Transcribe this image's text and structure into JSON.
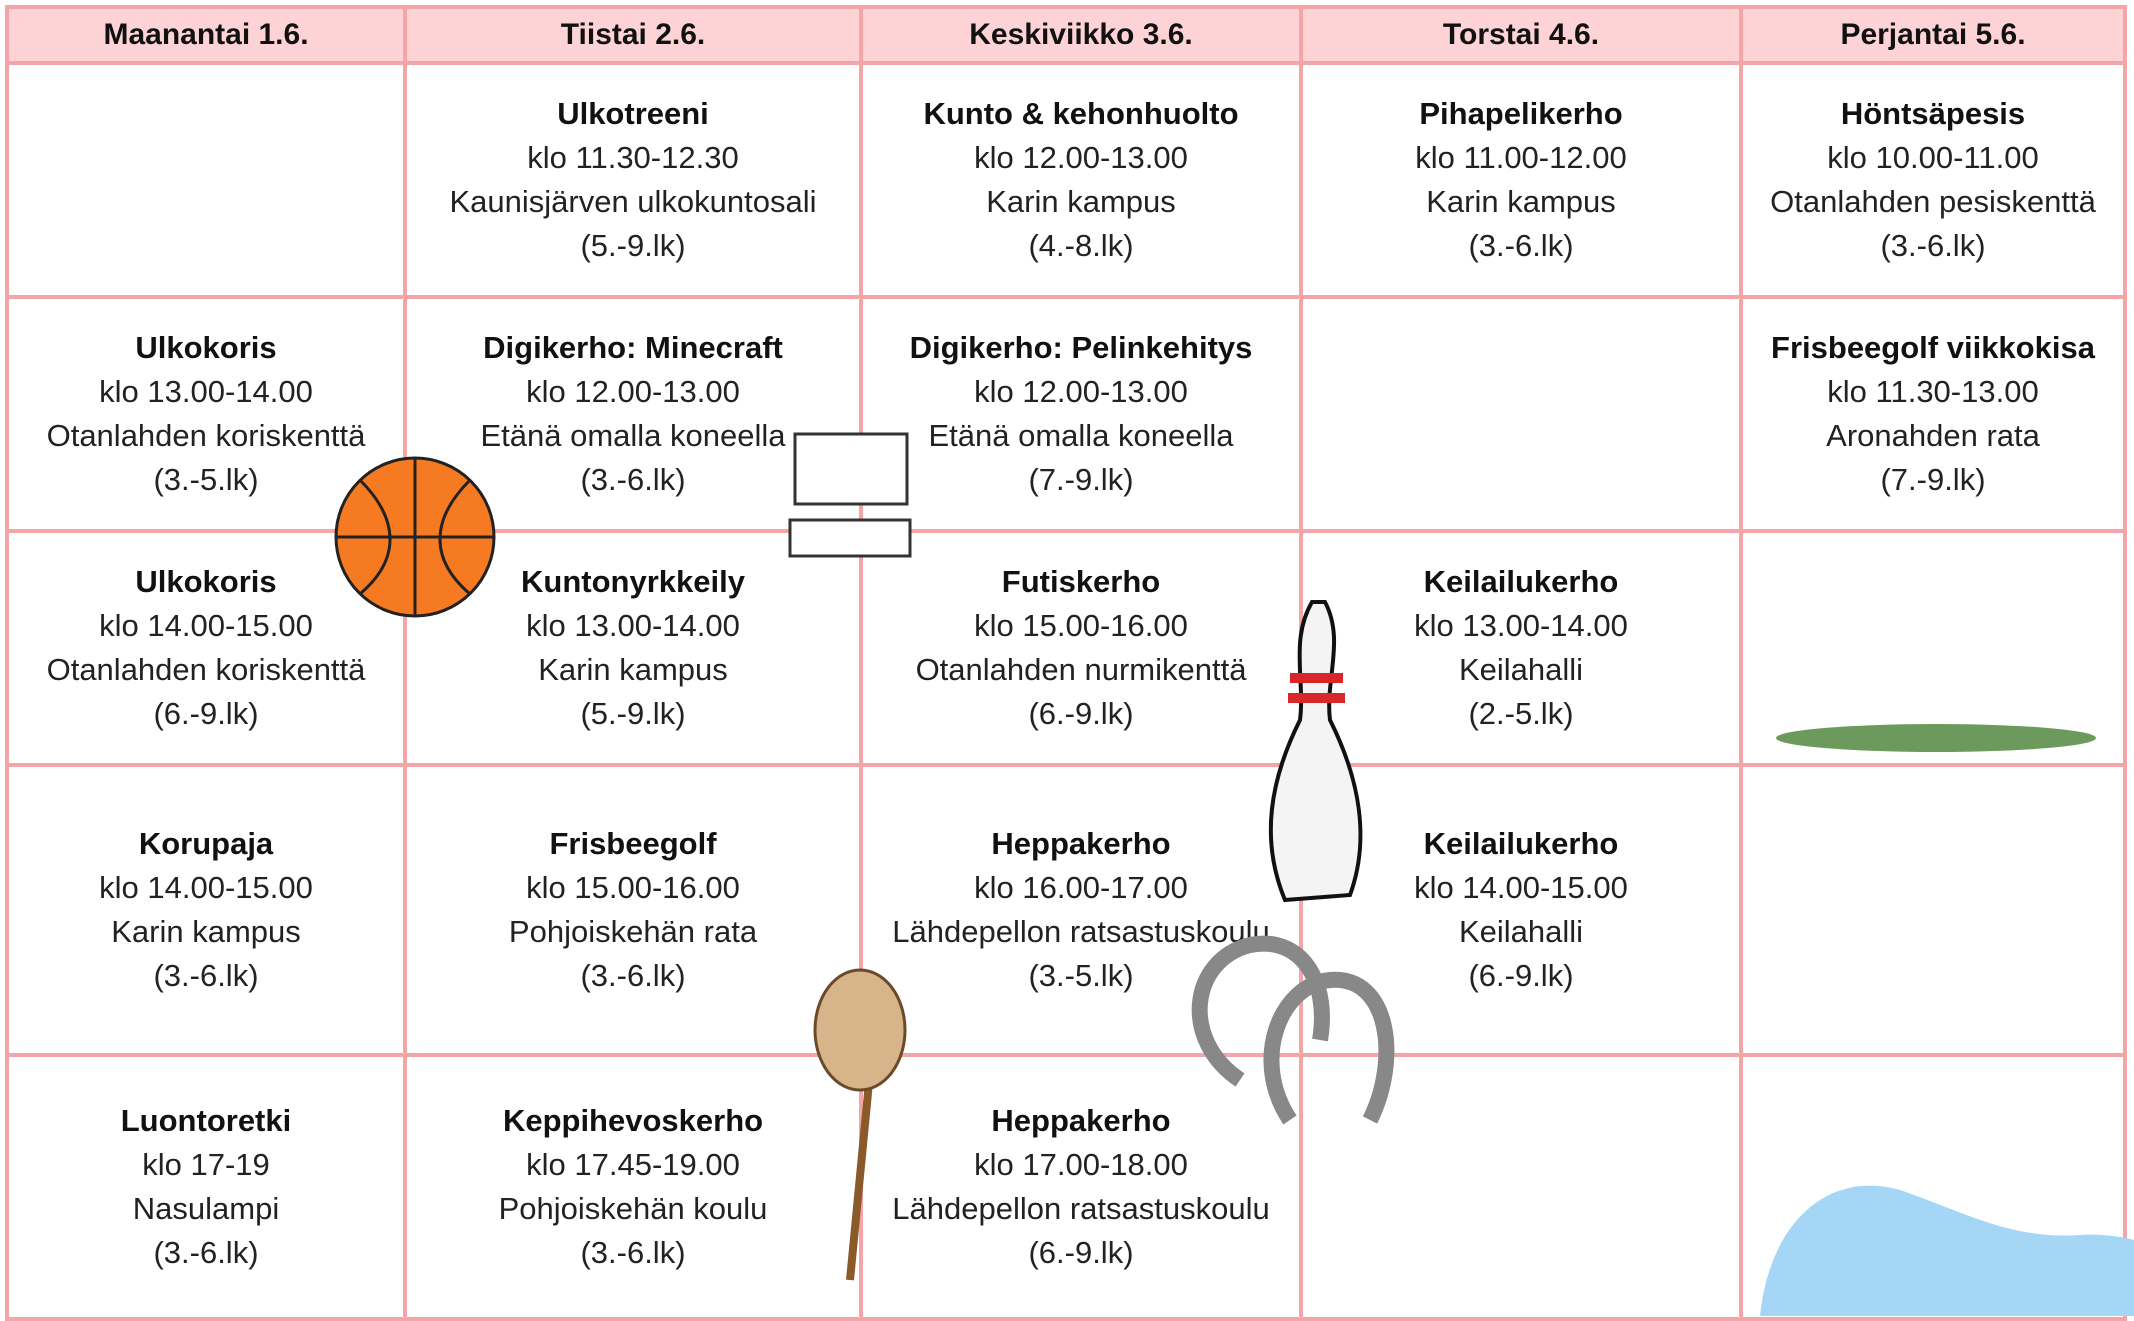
{
  "table": {
    "header": [
      "Maanantai 1.6.",
      "Tiistai 2.6.",
      "Keskiviikko 3.6.",
      "Torstai 4.6.",
      "Perjantai 5.6."
    ],
    "rows": [
      [
        null,
        {
          "title": "Ulkotreeni",
          "time": "klo 11.30-12.30",
          "place": "Kaunisjärven ulkokuntosali",
          "grade": "(5.-9.lk)"
        },
        {
          "title": "Kunto & kehonhuolto",
          "time": "klo 12.00-13.00",
          "place": "Karin kampus",
          "grade": "(4.-8.lk)"
        },
        {
          "title": "Pihapelikerho",
          "time": "klo 11.00-12.00",
          "place": "Karin kampus",
          "grade": "(3.-6.lk)"
        },
        {
          "title": "Höntsäpesis",
          "time": "klo 10.00-11.00",
          "place": "Otanlahden pesiskenttä",
          "grade": "(3.-6.lk)"
        }
      ],
      [
        {
          "title": "Ulkokoris",
          "time": "klo 13.00-14.00",
          "place": "Otanlahden koriskenttä",
          "grade": "(3.-5.lk)"
        },
        {
          "title": "Digikerho: Minecraft",
          "time": "klo 12.00-13.00",
          "place": "Etänä omalla koneella",
          "grade": "(3.-6.lk)"
        },
        {
          "title": "Digikerho: Pelinkehitys",
          "time": "klo 12.00-13.00",
          "place": "Etänä omalla koneella",
          "grade": "(7.-9.lk)"
        },
        null,
        {
          "title": "Frisbeegolf viikkokisa",
          "time": "klo 11.30-13.00",
          "place": "Aronahden rata",
          "grade": "(7.-9.lk)"
        }
      ],
      [
        {
          "title": "Ulkokoris",
          "time": "klo 14.00-15.00",
          "place": "Otanlahden koriskenttä",
          "grade": "(6.-9.lk)"
        },
        {
          "title": "Kuntonyrkkeily",
          "time": "klo 13.00-14.00",
          "place": "Karin kampus",
          "grade": "(5.-9.lk)"
        },
        {
          "title": "Futiskerho",
          "time": "klo 15.00-16.00",
          "place": "Otanlahden nurmikenttä",
          "grade": "(6.-9.lk)"
        },
        {
          "title": "Keilailukerho",
          "time": "klo 13.00-14.00",
          "place": "Keilahalli",
          "grade": "(2.-5.lk)"
        },
        null
      ],
      [
        {
          "title": "Korupaja",
          "time": "klo 14.00-15.00",
          "place": "Karin kampus",
          "grade": "(3.-6.lk)"
        },
        {
          "title": "Frisbeegolf",
          "time": "klo 15.00-16.00",
          "place": "Pohjoiskehän rata",
          "grade": "(3.-6.lk)"
        },
        {
          "title": "Heppakerho",
          "time": "klo 16.00-17.00",
          "place": "Lähdepellon ratsastuskoulu",
          "grade": "(3.-5.lk)"
        },
        {
          "title": "Keilailukerho",
          "time": "klo 14.00-15.00",
          "place": "Keilahalli",
          "grade": "(6.-9.lk)"
        },
        null
      ],
      [
        {
          "title": "Luontoretki",
          "time": "klo 17-19",
          "place": "Nasulampi",
          "grade": "(3.-6.lk)"
        },
        {
          "title": "Keppihevoskerho",
          "time": "klo 17.45-19.00",
          "place": "Pohjoiskehän koulu",
          "grade": "(3.-6.lk)"
        },
        {
          "title": "Heppakerho",
          "time": "klo 17.00-18.00",
          "place": "Lähdepellon ratsastuskoulu",
          "grade": "(6.-9.lk)"
        },
        null,
        null
      ]
    ]
  }
}
